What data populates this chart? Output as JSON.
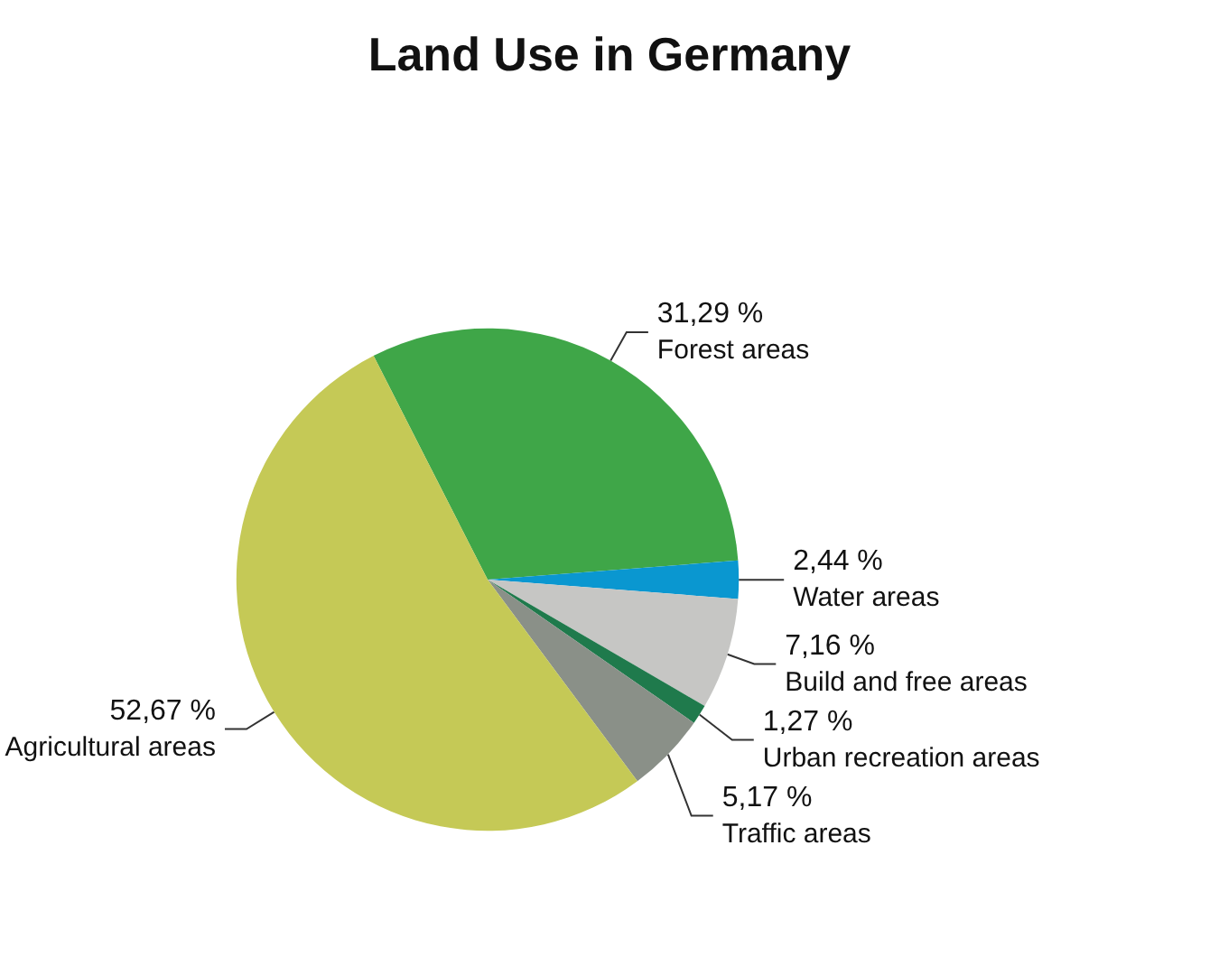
{
  "chart_data": {
    "type": "pie",
    "title": "Land Use in Germany",
    "categories": [
      "Forest areas",
      "Water areas",
      "Build and free areas",
      "Urban recreation areas",
      "Traffic areas",
      "Agricultural areas"
    ],
    "values": [
      31.29,
      2.44,
      7.16,
      1.27,
      5.17,
      52.67
    ],
    "value_labels": [
      "31,29 %",
      "2,44 %",
      "7,16 %",
      "1,27 %",
      "5,17 %",
      "52,67 %"
    ],
    "colors": [
      "#3fa648",
      "#0a97d0",
      "#c6c6c4",
      "#1f7a4c",
      "#8a9088",
      "#c5c956"
    ],
    "legend": false
  }
}
